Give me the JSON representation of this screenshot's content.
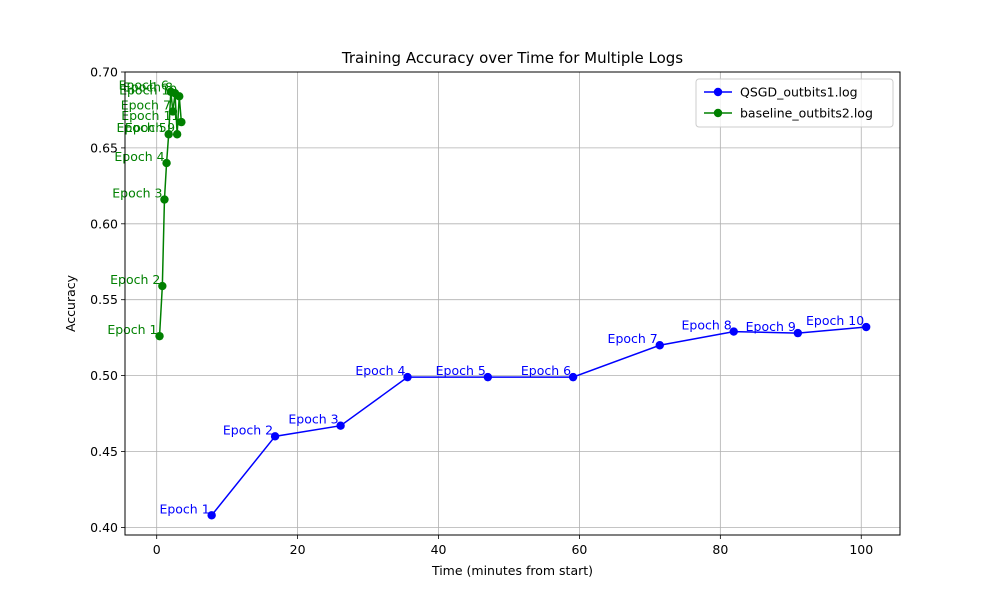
{
  "chart_data": {
    "type": "line",
    "title": "Training Accuracy over Time for Multiple Logs",
    "xlabel": "Time (minutes from start)",
    "ylabel": "Accuracy",
    "xlim": [
      -4.5,
      105.5
    ],
    "ylim": [
      0.395,
      0.7
    ],
    "xticks": [
      0,
      20,
      40,
      60,
      80,
      100
    ],
    "yticks": [
      0.4,
      0.45,
      0.5,
      0.55,
      0.6,
      0.65,
      0.7
    ],
    "xtick_labels": [
      "0",
      "20",
      "40",
      "60",
      "80",
      "100"
    ],
    "ytick_labels": [
      "0.40",
      "0.45",
      "0.50",
      "0.55",
      "0.60",
      "0.65",
      "0.70"
    ],
    "grid": true,
    "legend_position": "upper right",
    "series": [
      {
        "name": "QSGD_outbits1.log",
        "color": "#0000ff",
        "x": [
          7.8,
          16.8,
          26.1,
          35.6,
          47.0,
          59.1,
          71.4,
          81.9,
          91.0,
          100.7
        ],
        "y": [
          0.408,
          0.46,
          0.467,
          0.499,
          0.499,
          0.499,
          0.52,
          0.529,
          0.528,
          0.532
        ],
        "labels": [
          "Epoch 1",
          "Epoch 2",
          "Epoch 3",
          "Epoch 4",
          "Epoch 5",
          "Epoch 6",
          "Epoch 7",
          "Epoch 8",
          "Epoch 9",
          "Epoch 10"
        ]
      },
      {
        "name": "baseline_outbits2.log",
        "color": "#008000",
        "x": [
          0.4,
          0.8,
          1.1,
          1.4,
          1.7,
          2.0,
          2.3,
          2.6,
          2.9,
          3.2,
          3.5
        ],
        "y": [
          0.526,
          0.559,
          0.616,
          0.64,
          0.659,
          0.687,
          0.674,
          0.686,
          0.659,
          0.684,
          0.667
        ],
        "labels": [
          "Epoch 1",
          "Epoch 2",
          "Epoch 3",
          "Epoch 4",
          "Epoch 5",
          "Epoch 6",
          "Epoch 7",
          "Epoch 8",
          "Epoch 9",
          "Epoch 10",
          "Epoch 11"
        ]
      }
    ]
  }
}
